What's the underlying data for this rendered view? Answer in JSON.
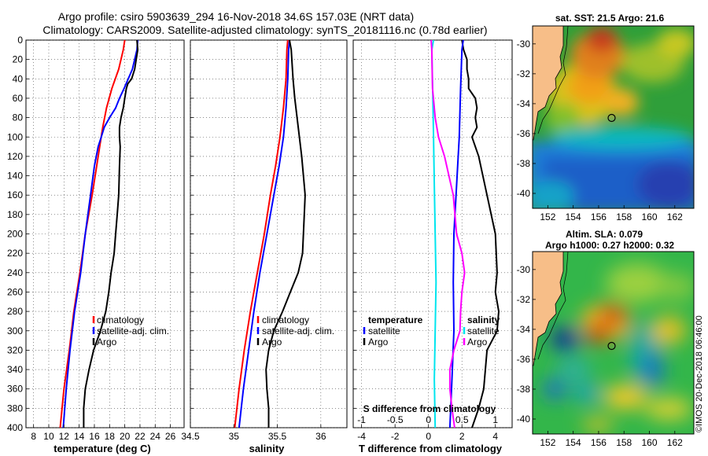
{
  "header": {
    "title_line1": "Argo profile: csiro 5903639_294 16-Nov-2018 34.6S 157.03E (NRT data)",
    "title_line2": "Climatology: CARS2009. Satellite-adjusted climatology: synTS_20181116.nc (0.78d earlier)"
  },
  "depth_ticks": [
    "0",
    "20",
    "40",
    "60",
    "80",
    "100",
    "120",
    "140",
    "160",
    "180",
    "200",
    "220",
    "240",
    "260",
    "280",
    "300",
    "320",
    "340",
    "360",
    "380",
    "400"
  ],
  "chart_data": [
    {
      "type": "line",
      "id": "temperature",
      "xlabel": "temperature (deg C)",
      "ylabel": "depth",
      "xlim": [
        7,
        27.8
      ],
      "ylim": [
        400,
        0
      ],
      "xticks": [
        "8",
        "10",
        "12",
        "14",
        "16",
        "18",
        "20",
        "22",
        "24",
        "26"
      ],
      "xtick_values": [
        8,
        10,
        12,
        14,
        16,
        18,
        20,
        22,
        24,
        26
      ],
      "legend": [
        "climatology",
        "satellite-adj. clim.",
        "Argo"
      ],
      "series": [
        {
          "name": "climatology",
          "color": "#ff0000",
          "depth": [
            0,
            10,
            30,
            50,
            70,
            90,
            110,
            130,
            160,
            200,
            240,
            280,
            320,
            360,
            400
          ],
          "values": [
            20.0,
            19.8,
            19.2,
            18.3,
            17.6,
            17.1,
            16.7,
            16.3,
            15.7,
            14.8,
            14.1,
            13.3,
            12.7,
            12.0,
            11.5
          ]
        },
        {
          "name": "satellite-adj. clim.",
          "color": "#0000ff",
          "depth": [
            0,
            10,
            30,
            50,
            60,
            70,
            80,
            90,
            100,
            110,
            130,
            160,
            200,
            240,
            280,
            320,
            360,
            400
          ],
          "values": [
            21.7,
            21.6,
            21.0,
            19.9,
            19.3,
            18.8,
            18.0,
            17.3,
            16.9,
            16.5,
            16.0,
            15.5,
            14.8,
            14.2,
            13.4,
            12.8,
            12.3,
            11.9
          ]
        },
        {
          "name": "Argo",
          "color": "#000000",
          "depth": [
            0,
            10,
            20,
            30,
            40,
            45,
            50,
            60,
            70,
            80,
            90,
            100,
            110,
            130,
            160,
            180,
            200,
            220,
            240,
            260,
            280,
            300,
            320,
            340,
            360,
            380,
            400
          ],
          "values": [
            21.6,
            21.7,
            21.5,
            21.3,
            20.9,
            20.4,
            20.2,
            20.0,
            19.8,
            19.5,
            19.3,
            19.3,
            19.4,
            19.3,
            19.2,
            19.0,
            18.8,
            18.6,
            18.2,
            17.9,
            17.5,
            16.8,
            15.9,
            15.3,
            14.8,
            14.6,
            14.6
          ]
        }
      ]
    },
    {
      "type": "line",
      "id": "salinity",
      "xlabel": "salinity",
      "ylabel": "depth",
      "xlim": [
        34.5,
        36.3
      ],
      "ylim": [
        400,
        0
      ],
      "xticks": [
        "34.5",
        "35",
        "35.5",
        "36"
      ],
      "xtick_values": [
        34.5,
        35,
        35.5,
        36
      ],
      "legend": [
        "climatology",
        "satellite-adj. clim.",
        "Argo"
      ],
      "series": [
        {
          "name": "climatology",
          "color": "#ff0000",
          "depth": [
            0,
            10,
            40,
            70,
            100,
            130,
            160,
            200,
            240,
            280,
            320,
            360,
            400
          ],
          "values": [
            35.62,
            35.61,
            35.6,
            35.57,
            35.53,
            35.48,
            35.42,
            35.35,
            35.27,
            35.19,
            35.12,
            35.06,
            35.01
          ]
        },
        {
          "name": "satellite-adj. clim.",
          "color": "#0000ff",
          "depth": [
            0,
            10,
            40,
            70,
            100,
            130,
            160,
            200,
            240,
            280,
            320,
            360,
            400
          ],
          "values": [
            35.64,
            35.63,
            35.62,
            35.6,
            35.57,
            35.52,
            35.46,
            35.38,
            35.3,
            35.23,
            35.17,
            35.11,
            35.06
          ]
        },
        {
          "name": "Argo",
          "color": "#000000",
          "depth": [
            0,
            10,
            40,
            60,
            90,
            120,
            140,
            160,
            180,
            200,
            220,
            240,
            260,
            280,
            300,
            320,
            340,
            360,
            380,
            400
          ],
          "values": [
            35.64,
            35.66,
            35.68,
            35.7,
            35.74,
            35.78,
            35.8,
            35.82,
            35.81,
            35.8,
            35.79,
            35.74,
            35.65,
            35.56,
            35.46,
            35.4,
            35.37,
            35.38,
            35.4,
            35.4
          ]
        }
      ]
    },
    {
      "type": "line",
      "id": "differences",
      "xlabel": "T difference from climatology",
      "xlabel_top": "S difference from climatology",
      "ylabel": "depth",
      "xlim": [
        -4.5,
        5
      ],
      "ylim": [
        400,
        0
      ],
      "xticks": [
        "-4",
        "-2",
        "0",
        "2",
        "4"
      ],
      "xtick_values": [
        -4,
        -2,
        0,
        2,
        4
      ],
      "xticks_top": [
        "-1",
        "-0.5",
        "0",
        "0.5",
        "1"
      ],
      "xtick_top_values": [
        -1,
        -0.5,
        0,
        0.5,
        1
      ],
      "legend_left_title": "temperature",
      "legend_left": [
        "satellite",
        "Argo"
      ],
      "legend_right_title": "salinity",
      "legend_right": [
        "satellite",
        "Argo"
      ],
      "series": [
        {
          "name": "T satellite",
          "color": "#00e5ee",
          "depth": [
            0,
            10,
            50,
            100,
            150,
            200,
            250,
            300,
            350,
            400
          ],
          "values": [
            0.3,
            0.2,
            0.25,
            0.3,
            0.35,
            0.4,
            0.45,
            0.4,
            0.35,
            0.4
          ]
        },
        {
          "name": "T Argo",
          "color": "#000000",
          "depth": [
            0,
            10,
            20,
            30,
            40,
            50,
            60,
            70,
            80,
            90,
            100,
            120,
            160,
            200,
            240,
            260,
            280,
            300,
            320,
            340,
            360,
            380,
            400
          ],
          "values": [
            2.0,
            2.1,
            2.3,
            2.3,
            2.4,
            2.4,
            2.8,
            2.9,
            2.8,
            2.9,
            2.6,
            3.0,
            3.5,
            4.0,
            4.1,
            4.0,
            4.2,
            4.1,
            3.5,
            3.4,
            3.3,
            3.0,
            2.6
          ]
        },
        {
          "name": "S satellite",
          "color": "#0000ff",
          "depth": [
            0,
            10,
            50,
            100,
            150,
            200,
            250,
            300,
            350,
            400
          ],
          "values": [
            0.52,
            0.5,
            0.48,
            0.46,
            0.42,
            0.38,
            0.37,
            0.38,
            0.35,
            0.32
          ]
        },
        {
          "name": "S Argo",
          "color": "#ff00ff",
          "depth": [
            0,
            10,
            50,
            80,
            100,
            120,
            160,
            200,
            220,
            240,
            260,
            280,
            300,
            320,
            340,
            360,
            380,
            400
          ],
          "values": [
            0.04,
            0.05,
            0.06,
            0.1,
            0.15,
            0.24,
            0.37,
            0.42,
            0.5,
            0.54,
            0.5,
            0.48,
            0.47,
            0.38,
            0.32,
            0.32,
            0.35,
            0.39
          ]
        }
      ]
    },
    {
      "type": "heatmap",
      "id": "sst-map",
      "title": "sat. SST: 21.5 Argo: 21.6",
      "xlim": [
        150.8,
        163.5
      ],
      "ylim": [
        -41.0,
        -28.8
      ],
      "xticks": [
        "152",
        "154",
        "156",
        "158",
        "160",
        "162"
      ],
      "xtick_values": [
        152,
        154,
        156,
        158,
        160,
        162
      ],
      "yticks": [
        "-30",
        "-32",
        "-34",
        "-36",
        "-38",
        "-40"
      ],
      "ytick_values": [
        -30,
        -32,
        -34,
        -36,
        -38,
        -40
      ],
      "argo_position": {
        "lon": 157.03,
        "lat": -34.6
      }
    },
    {
      "type": "heatmap",
      "id": "sla-map",
      "title_line1": "Altim. SLA: 0.079",
      "title_line2": "Argo h1000: 0.27 h2000: 0.32",
      "xlim": [
        150.8,
        163.5
      ],
      "ylim": [
        -41.0,
        -28.8
      ],
      "xticks": [
        "152",
        "154",
        "156",
        "158",
        "160",
        "162"
      ],
      "xtick_values": [
        152,
        154,
        156,
        158,
        160,
        162
      ],
      "yticks": [
        "-30",
        "-32",
        "-34",
        "-36",
        "-38",
        "-40"
      ],
      "ytick_values": [
        -30,
        -32,
        -34,
        -36,
        -38,
        -40
      ],
      "argo_position": {
        "lon": 157.03,
        "lat": -34.6
      }
    }
  ],
  "footer": {
    "credit": "©IMOS 20-Dec-2018 06:46:00"
  }
}
